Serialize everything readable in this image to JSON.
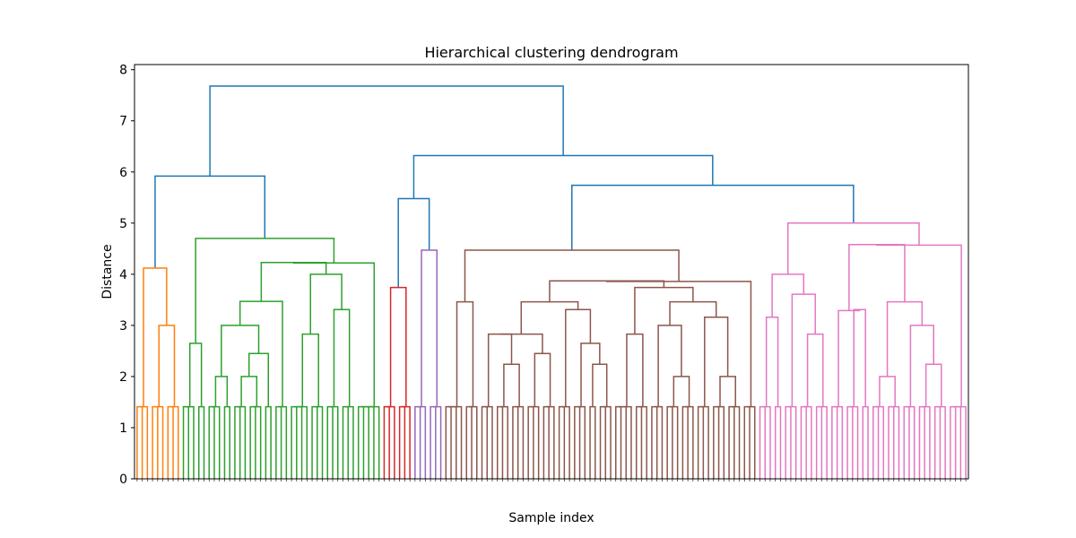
{
  "chart_data": {
    "type": "dendrogram",
    "title": "Hierarchical clustering dendrogram",
    "xlabel": "Sample index",
    "ylabel": "Distance",
    "ylim": [
      0,
      8.1
    ],
    "yticks": [
      0,
      1,
      2,
      3,
      4,
      5,
      6,
      7,
      8
    ],
    "leaf_count": 200,
    "colors": {
      "above_threshold": "#1f77b4",
      "orange": "#ff7f0e",
      "green": "#2ca02c",
      "red": "#d62728",
      "purple": "#9467bd",
      "brown": "#8c564b",
      "pink": "#e377c2"
    },
    "clusters": [
      {
        "color": "orange",
        "leaves": 9
      },
      {
        "color": "green",
        "leaves": 47
      },
      {
        "color": "red",
        "leaves": 6
      },
      {
        "color": "purple",
        "leaves": 6
      },
      {
        "color": "brown",
        "leaves": 83
      },
      {
        "color": "pink",
        "leaves": 49
      }
    ],
    "merges": [
      {
        "cluster": "orange",
        "height": 4.12
      },
      {
        "cluster": "orange",
        "height": 3.0
      },
      {
        "cluster": "green",
        "height": 4.7
      },
      {
        "cluster": "green",
        "height": 4.23
      },
      {
        "cluster": "green",
        "height": 4.0
      },
      {
        "cluster": "green",
        "height": 3.47
      },
      {
        "cluster": "green",
        "height": 3.31
      },
      {
        "cluster": "green",
        "height": 3.0
      },
      {
        "cluster": "green",
        "height": 2.83
      },
      {
        "cluster": "green",
        "height": 2.65
      },
      {
        "cluster": "green",
        "height": 2.45
      },
      {
        "cluster": "green",
        "height": 2.0
      },
      {
        "cluster": "red",
        "height": 3.74
      },
      {
        "cluster": "purple",
        "height": 4.47
      },
      {
        "cluster": "brown",
        "height": 4.47
      },
      {
        "cluster": "brown",
        "height": 3.87
      },
      {
        "cluster": "brown",
        "height": 3.74
      },
      {
        "cluster": "brown",
        "height": 3.46
      },
      {
        "cluster": "brown",
        "height": 3.31
      },
      {
        "cluster": "brown",
        "height": 3.16
      },
      {
        "cluster": "brown",
        "height": 3.0
      },
      {
        "cluster": "brown",
        "height": 2.83
      },
      {
        "cluster": "brown",
        "height": 2.65
      },
      {
        "cluster": "brown",
        "height": 2.45
      },
      {
        "cluster": "brown",
        "height": 2.24
      },
      {
        "cluster": "brown",
        "height": 2.0
      },
      {
        "cluster": "pink",
        "height": 5.0
      },
      {
        "cluster": "pink",
        "height": 4.58
      },
      {
        "cluster": "pink",
        "height": 4.0
      },
      {
        "cluster": "pink",
        "height": 3.61
      },
      {
        "cluster": "pink",
        "height": 3.46
      },
      {
        "cluster": "pink",
        "height": 3.31
      },
      {
        "cluster": "pink",
        "height": 3.16
      },
      {
        "cluster": "pink",
        "height": 3.0
      },
      {
        "cluster": "pink",
        "height": 2.83
      },
      {
        "cluster": "pink",
        "height": 2.24
      },
      {
        "cluster": "pink",
        "height": 2.0
      },
      {
        "cluster": "blue",
        "height": 7.68
      },
      {
        "cluster": "blue",
        "height": 6.32
      },
      {
        "cluster": "blue",
        "height": 5.92
      },
      {
        "cluster": "blue",
        "height": 5.74
      },
      {
        "cluster": "blue",
        "height": 5.48
      }
    ],
    "leaf_merge_height": 1.41
  }
}
